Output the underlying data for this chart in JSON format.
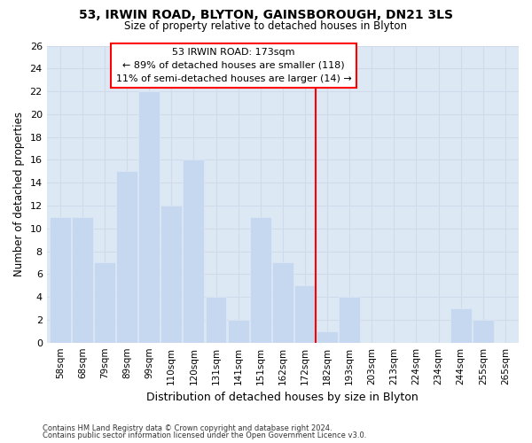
{
  "title1": "53, IRWIN ROAD, BLYTON, GAINSBOROUGH, DN21 3LS",
  "title2": "Size of property relative to detached houses in Blyton",
  "xlabel": "Distribution of detached houses by size in Blyton",
  "ylabel": "Number of detached properties",
  "footnote1": "Contains HM Land Registry data © Crown copyright and database right 2024.",
  "footnote2": "Contains public sector information licensed under the Open Government Licence v3.0.",
  "bar_labels": [
    "58sqm",
    "68sqm",
    "79sqm",
    "89sqm",
    "99sqm",
    "110sqm",
    "120sqm",
    "131sqm",
    "141sqm",
    "151sqm",
    "162sqm",
    "172sqm",
    "182sqm",
    "193sqm",
    "203sqm",
    "213sqm",
    "224sqm",
    "234sqm",
    "244sqm",
    "255sqm",
    "265sqm"
  ],
  "bar_values": [
    11,
    11,
    7,
    15,
    22,
    12,
    16,
    4,
    2,
    11,
    7,
    5,
    1,
    4,
    0,
    0,
    0,
    0,
    3,
    2,
    0
  ],
  "bar_color": "#c5d8f0",
  "grid_color": "#d0daea",
  "background_color": "#dde8f5",
  "fig_background": "#ffffff",
  "vline_color": "red",
  "vline_x": 11.5,
  "annotation_text": "53 IRWIN ROAD: 173sqm\n← 89% of detached houses are smaller (118)\n11% of semi-detached houses are larger (14) →",
  "ylim": [
    0,
    26
  ],
  "yticks": [
    0,
    2,
    4,
    6,
    8,
    10,
    12,
    14,
    16,
    18,
    20,
    22,
    24,
    26
  ]
}
